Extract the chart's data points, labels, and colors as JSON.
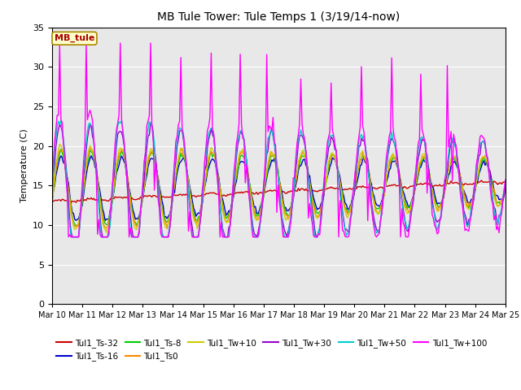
{
  "title": "MB Tule Tower: Tule Temps 1 (3/19/14-now)",
  "ylabel": "Temperature (C)",
  "ylim": [
    0,
    35
  ],
  "yticks": [
    0,
    5,
    10,
    15,
    20,
    25,
    30,
    35
  ],
  "xlim": [
    0,
    15
  ],
  "xtick_labels": [
    "Mar 10",
    "Mar 11",
    "Mar 12",
    "Mar 13",
    "Mar 14",
    "Mar 15",
    "Mar 16",
    "Mar 17",
    "Mar 18",
    "Mar 19",
    "Mar 20",
    "Mar 21",
    "Mar 22",
    "Mar 23",
    "Mar 24",
    "Mar 25"
  ],
  "legend_label_box": "MB_tule",
  "bg_color": "#e8e8e8",
  "series_order": [
    "Tul1_Ts-32",
    "Tul1_Ts-16",
    "Tul1_Ts-8",
    "Tul1_Ts0",
    "Tul1_Tw+10",
    "Tul1_Tw+30",
    "Tul1_Tw+50",
    "Tul1_Tw+100"
  ],
  "series": {
    "Tul1_Ts-32": {
      "color": "#cc0000"
    },
    "Tul1_Ts-16": {
      "color": "#0000cc"
    },
    "Tul1_Ts-8": {
      "color": "#00cc00"
    },
    "Tul1_Ts0": {
      "color": "#ff8800"
    },
    "Tul1_Tw+10": {
      "color": "#cccc00"
    },
    "Tul1_Tw+30": {
      "color": "#9900cc"
    },
    "Tul1_Tw+50": {
      "color": "#00cccc"
    },
    "Tul1_Tw+100": {
      "color": "#ff00ff"
    }
  }
}
